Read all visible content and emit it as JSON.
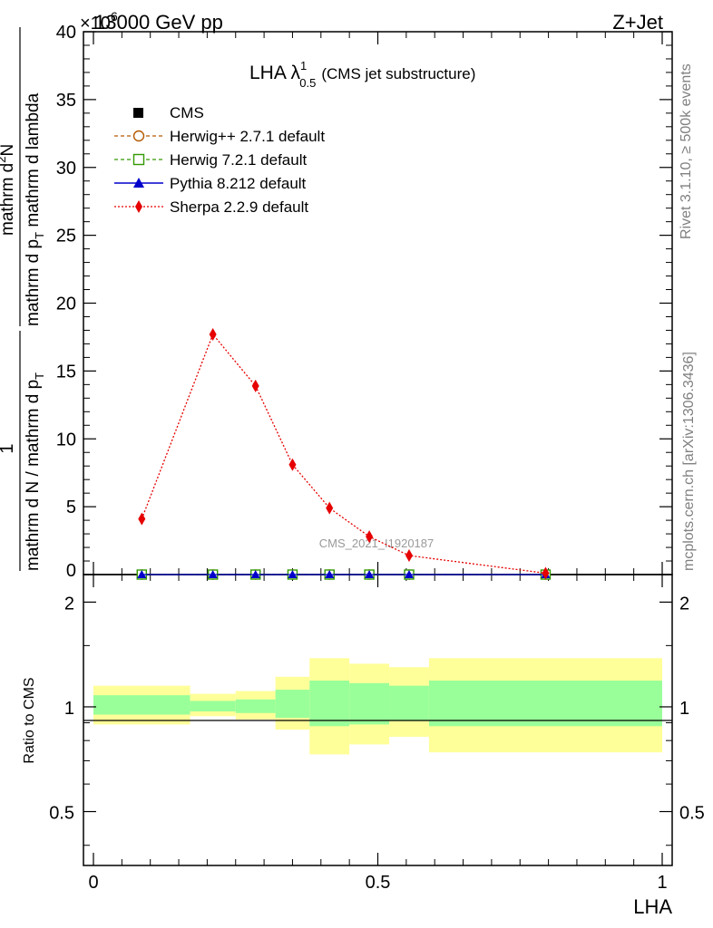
{
  "header": {
    "left": "13000 GeV pp",
    "right": "Z+Jet",
    "exponent": "×10",
    "exponent_power": "6"
  },
  "side_labels": {
    "rivet": "Rivet 3.1.10, ≥ 500k events",
    "mcplots": "mcplots.cern.ch [arXiv:1306.3436]"
  },
  "watermark": "CMS_2021_I1920187",
  "title": {
    "main": "LHA λ",
    "sup": "1",
    "sub": "0.5",
    "suffix": "(CMS jet substructure)"
  },
  "ylabel_main": {
    "prefix": "1",
    "prefix_den": "mathrm d N / mathrm d p",
    "prefix_den_sub": "T",
    "num": "mathrm d",
    "num_sup": "2",
    "num_tail": "N",
    "den": "mathrm d p",
    "den_sub": "T",
    "den_tail": " mathrm d lambda"
  },
  "ylabel_ratio": "Ratio to CMS",
  "xlabel": "LHA",
  "legend": [
    {
      "key": "cms",
      "label": "CMS"
    },
    {
      "key": "herwigpp",
      "label": "Herwig++ 2.7.1 default"
    },
    {
      "key": "herwig7",
      "label": "Herwig 7.2.1 default"
    },
    {
      "key": "pythia",
      "label": "Pythia 8.212 default"
    },
    {
      "key": "sherpa",
      "label": "Sherpa 2.2.9 default"
    }
  ],
  "main_ticks": [
    "0",
    "5",
    "10",
    "15",
    "20",
    "25",
    "30",
    "35",
    "40"
  ],
  "ratio_ticks": [
    "0.5",
    "1",
    "2"
  ],
  "x_ticks": [
    "0",
    "0.5",
    "1"
  ],
  "chart_data": {
    "type": "line",
    "xlabel": "LHA",
    "ylabel": "1/(dN/dpT) d²N/(dpT dλ)",
    "xlim": [
      0,
      1
    ],
    "ylim": [
      0,
      40
    ],
    "y_scale_exponent": 6,
    "x": [
      0.085,
      0.21,
      0.285,
      0.35,
      0.415,
      0.485,
      0.555,
      0.795
    ],
    "series": [
      {
        "name": "CMS",
        "color": "#000000",
        "values": [
          0,
          0,
          0,
          0,
          0,
          0,
          0,
          0
        ]
      },
      {
        "name": "Herwig++ 2.7.1 default",
        "color": "#b35900",
        "values": [
          0,
          0,
          0,
          0,
          0,
          0,
          0,
          0
        ]
      },
      {
        "name": "Herwig 7.2.1 default",
        "color": "#339900",
        "values": [
          0,
          0,
          0,
          0,
          0,
          0,
          0,
          0
        ]
      },
      {
        "name": "Pythia 8.212 default",
        "color": "#0000cc",
        "values": [
          0,
          0,
          0,
          0,
          0,
          0,
          0,
          0
        ]
      },
      {
        "name": "Sherpa 2.2.9 default",
        "color": "#e60000",
        "values": [
          4.1,
          17.7,
          13.9,
          8.1,
          4.9,
          2.8,
          1.4,
          0.1
        ]
      }
    ],
    "ratio": {
      "ylabel": "Ratio to CMS",
      "ylim": [
        0.35,
        2.4
      ],
      "log_scale": true,
      "reference": 1,
      "bins": [
        {
          "lo": 0.0,
          "hi": 0.17,
          "inner": [
            0.95,
            1.08
          ],
          "outer": [
            0.89,
            1.15
          ]
        },
        {
          "lo": 0.17,
          "hi": 0.25,
          "inner": [
            0.97,
            1.04
          ],
          "outer": [
            0.94,
            1.09
          ]
        },
        {
          "lo": 0.25,
          "hi": 0.32,
          "inner": [
            0.96,
            1.05
          ],
          "outer": [
            0.92,
            1.11
          ]
        },
        {
          "lo": 0.32,
          "hi": 0.38,
          "inner": [
            0.93,
            1.12
          ],
          "outer": [
            0.86,
            1.22
          ]
        },
        {
          "lo": 0.38,
          "hi": 0.45,
          "inner": [
            0.88,
            1.19
          ],
          "outer": [
            0.73,
            1.38
          ]
        },
        {
          "lo": 0.45,
          "hi": 0.52,
          "inner": [
            0.89,
            1.17
          ],
          "outer": [
            0.78,
            1.33
          ]
        },
        {
          "lo": 0.52,
          "hi": 0.59,
          "inner": [
            0.91,
            1.15
          ],
          "outer": [
            0.82,
            1.3
          ]
        },
        {
          "lo": 0.59,
          "hi": 1.0,
          "inner": [
            0.88,
            1.19
          ],
          "outer": [
            0.74,
            1.38
          ]
        }
      ]
    }
  }
}
